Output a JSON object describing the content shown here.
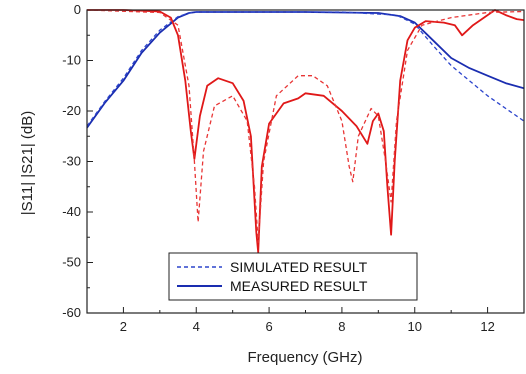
{
  "chart_data": {
    "type": "line",
    "xlabel": "Frequency (GHz)",
    "ylabel": "|S11|  |S21| (dB)",
    "xlim": [
      1,
      13
    ],
    "ylim": [
      -60,
      0
    ],
    "x_ticks": [
      "2",
      "4",
      "6",
      "8",
      "10",
      "12"
    ],
    "y_ticks": [
      "0",
      "-10",
      "-20",
      "-30",
      "-40",
      "-50",
      "-60"
    ],
    "legend": {
      "placement": "bottom-center",
      "entries": [
        {
          "label": "SIMULATED RESULT",
          "style": "dashed"
        },
        {
          "label": "MEASURED RESULT",
          "style": "solid"
        }
      ]
    },
    "series": [
      {
        "id": "s21_meas",
        "color": "#1a2db0",
        "dash": false,
        "points": [
          [
            1,
            -23.3
          ],
          [
            1.5,
            -18.3
          ],
          [
            2,
            -14.0
          ],
          [
            2.5,
            -8.5
          ],
          [
            3,
            -4.5
          ],
          [
            3.5,
            -1.5
          ],
          [
            3.8,
            -0.6
          ],
          [
            4,
            -0.4
          ],
          [
            5,
            -0.4
          ],
          [
            6,
            -0.4
          ],
          [
            7,
            -0.4
          ],
          [
            8,
            -0.5
          ],
          [
            9,
            -0.6
          ],
          [
            9.6,
            -1.2
          ],
          [
            10,
            -2.5
          ],
          [
            10.5,
            -6.0
          ],
          [
            11,
            -9.5
          ],
          [
            11.5,
            -11.5
          ],
          [
            12,
            -13.0
          ],
          [
            12.5,
            -14.5
          ],
          [
            13,
            -15.5
          ]
        ]
      },
      {
        "id": "s21_sim",
        "color": "#2d45cc",
        "dash": true,
        "points": [
          [
            1,
            -23.0
          ],
          [
            1.5,
            -18.0
          ],
          [
            2,
            -13.5
          ],
          [
            2.5,
            -8.0
          ],
          [
            3,
            -4.0
          ],
          [
            3.5,
            -1.3
          ],
          [
            3.8,
            -0.6
          ],
          [
            4,
            -0.4
          ],
          [
            6,
            -0.4
          ],
          [
            8,
            -0.4
          ],
          [
            9.5,
            -1.0
          ],
          [
            10,
            -2.8
          ],
          [
            10.5,
            -7.0
          ],
          [
            11,
            -11.0
          ],
          [
            11.5,
            -14.0
          ],
          [
            12,
            -17.0
          ],
          [
            12.5,
            -19.5
          ],
          [
            13,
            -22.0
          ]
        ]
      },
      {
        "id": "s11_meas",
        "color": "#e01818",
        "dash": false,
        "points": [
          [
            1,
            0
          ],
          [
            2,
            0
          ],
          [
            3,
            -0.3
          ],
          [
            3.3,
            -1.5
          ],
          [
            3.5,
            -5.0
          ],
          [
            3.7,
            -14.0
          ],
          [
            3.85,
            -24.0
          ],
          [
            3.95,
            -29.5
          ],
          [
            4.1,
            -21.0
          ],
          [
            4.3,
            -15.0
          ],
          [
            4.6,
            -13.5
          ],
          [
            5.0,
            -14.5
          ],
          [
            5.3,
            -18.0
          ],
          [
            5.5,
            -25.0
          ],
          [
            5.65,
            -44.0
          ],
          [
            5.7,
            -48.0
          ],
          [
            5.8,
            -31.0
          ],
          [
            6.0,
            -22.5
          ],
          [
            6.4,
            -18.5
          ],
          [
            6.8,
            -17.5
          ],
          [
            7.0,
            -16.5
          ],
          [
            7.5,
            -17.0
          ],
          [
            8.0,
            -20.0
          ],
          [
            8.4,
            -23.0
          ],
          [
            8.7,
            -26.5
          ],
          [
            8.85,
            -22.0
          ],
          [
            9.0,
            -20.5
          ],
          [
            9.15,
            -24.0
          ],
          [
            9.25,
            -35.0
          ],
          [
            9.35,
            -44.5
          ],
          [
            9.45,
            -30.0
          ],
          [
            9.6,
            -14.0
          ],
          [
            9.8,
            -6.0
          ],
          [
            10.0,
            -3.5
          ],
          [
            10.3,
            -2.2
          ],
          [
            10.8,
            -2.5
          ],
          [
            11.1,
            -3.0
          ],
          [
            11.3,
            -5.0
          ],
          [
            11.6,
            -3.0
          ],
          [
            12.0,
            -1.0
          ],
          [
            12.2,
            0.0
          ],
          [
            12.5,
            -1.0
          ],
          [
            12.8,
            -1.8
          ],
          [
            13,
            -2.0
          ]
        ]
      },
      {
        "id": "s11_sim",
        "color": "#e83535",
        "dash": true,
        "points": [
          [
            1,
            0
          ],
          [
            3,
            -0.5
          ],
          [
            3.5,
            -3.0
          ],
          [
            3.8,
            -15.0
          ],
          [
            3.95,
            -30.0
          ],
          [
            4.05,
            -42.0
          ],
          [
            4.2,
            -28.0
          ],
          [
            4.5,
            -19.0
          ],
          [
            5.0,
            -17.0
          ],
          [
            5.4,
            -22.0
          ],
          [
            5.6,
            -35.0
          ],
          [
            5.7,
            -46.0
          ],
          [
            5.85,
            -30.0
          ],
          [
            6.2,
            -17.0
          ],
          [
            6.8,
            -13.0
          ],
          [
            7.2,
            -13.0
          ],
          [
            7.6,
            -15.0
          ],
          [
            8.0,
            -22.0
          ],
          [
            8.2,
            -31.0
          ],
          [
            8.3,
            -34.0
          ],
          [
            8.45,
            -25.0
          ],
          [
            8.8,
            -19.5
          ],
          [
            9.0,
            -21.0
          ],
          [
            9.2,
            -30.0
          ],
          [
            9.35,
            -38.0
          ],
          [
            9.5,
            -22.0
          ],
          [
            9.8,
            -8.0
          ],
          [
            10.2,
            -3.0
          ],
          [
            11,
            -1.5
          ],
          [
            12,
            -0.5
          ],
          [
            13,
            -0.3
          ]
        ]
      }
    ]
  }
}
